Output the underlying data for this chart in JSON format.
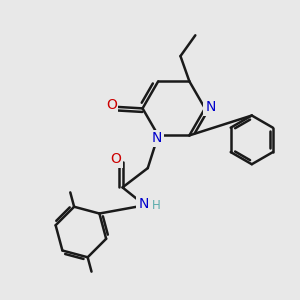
{
  "bg_color": "#e8e8e8",
  "bond_color": "#1a1a1a",
  "bond_width": 1.8,
  "atom_colors": {
    "N": "#0000cc",
    "O": "#cc0000",
    "H": "#5aacac"
  },
  "font_size_atom": 10,
  "font_size_h": 8.5
}
